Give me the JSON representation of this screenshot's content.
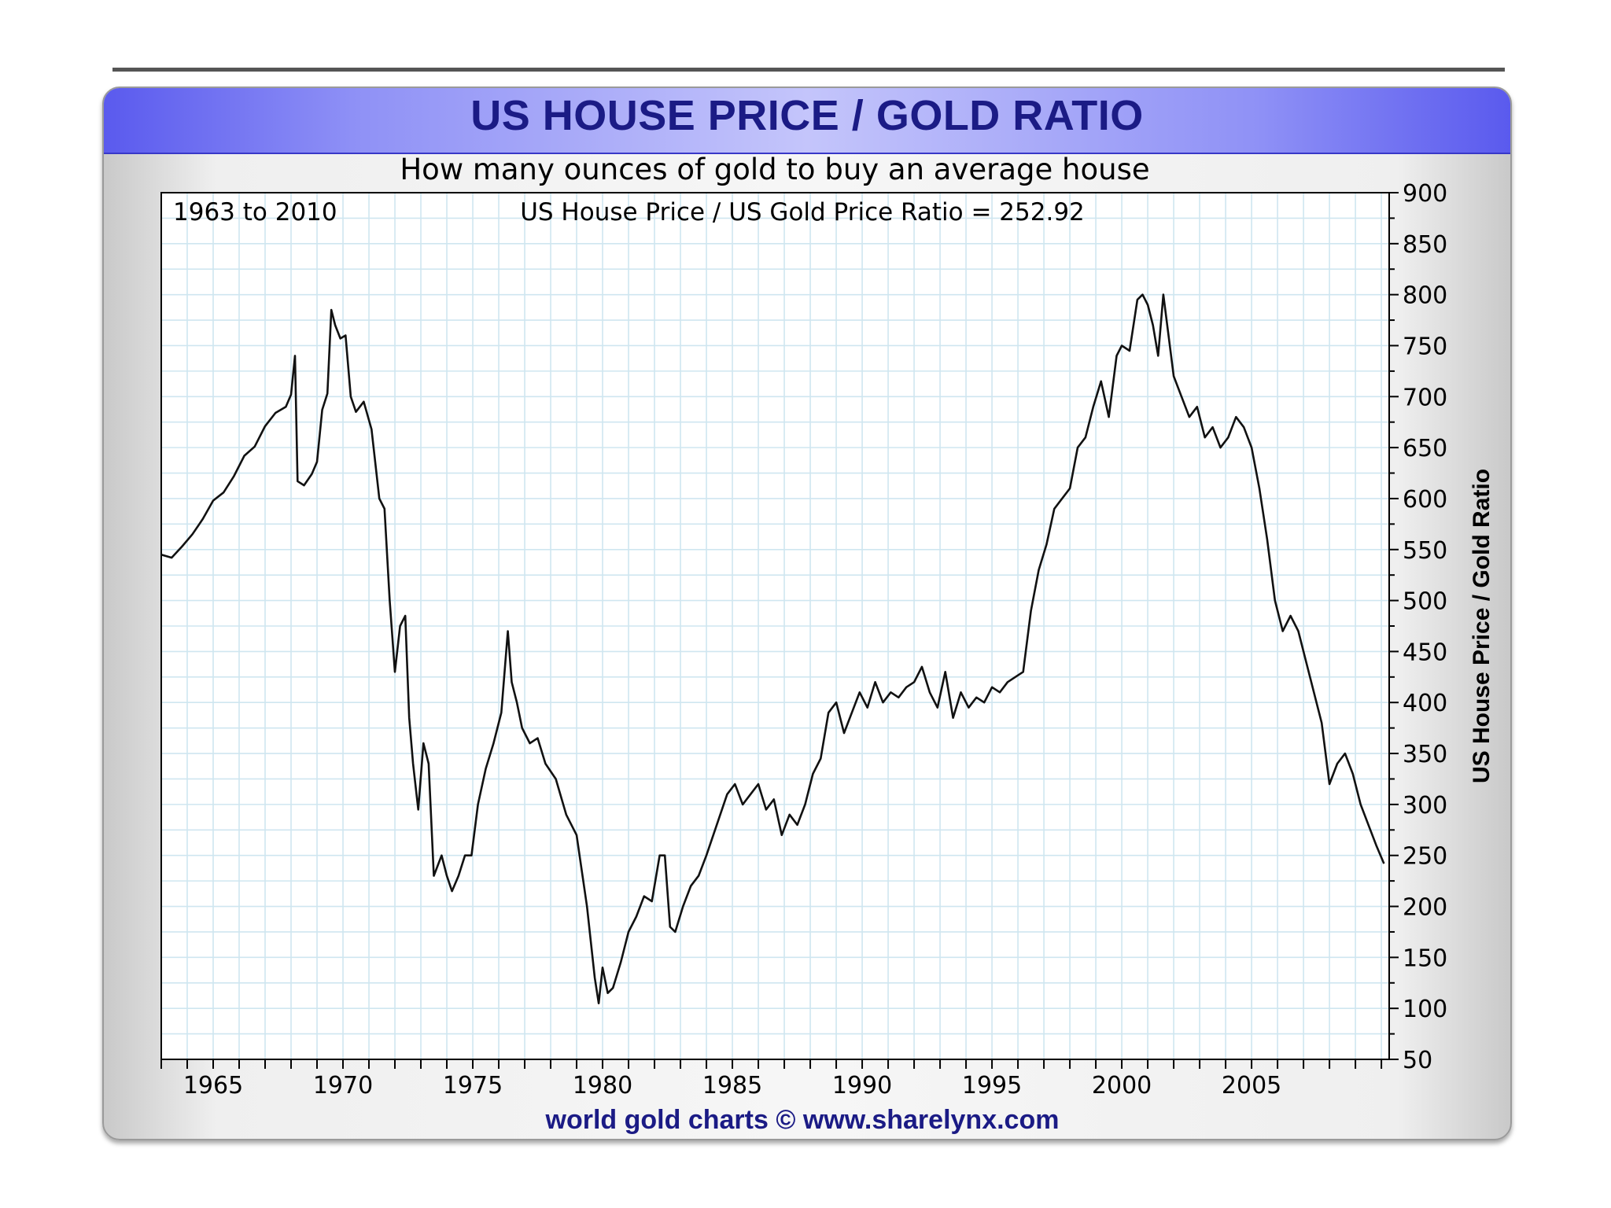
{
  "chart_data": {
    "type": "line",
    "title": "US HOUSE PRICE / GOLD RATIO",
    "subtitle": "How many ounces of gold to buy an average house",
    "annotations": {
      "range_label": "1963 to 2010",
      "current_value_label": "US House Price / US Gold Price Ratio = 252.92"
    },
    "xlabel": "",
    "ylabel": "US House Price / Gold Ratio",
    "footer": "world gold charts © www.sharelynx.com",
    "xlim": [
      1963,
      2010.3
    ],
    "ylim": [
      50,
      900
    ],
    "x_ticks": [
      "1965",
      "1970",
      "1975",
      "1980",
      "1985",
      "1990",
      "1995",
      "2000",
      "2005"
    ],
    "y_ticks": [
      "50",
      "100",
      "150",
      "200",
      "250",
      "300",
      "350",
      "400",
      "450",
      "500",
      "550",
      "600",
      "650",
      "700",
      "750",
      "800",
      "850",
      "900"
    ],
    "grid": true,
    "y_axis_side": "right",
    "series": [
      {
        "x": [
          1963.0,
          1963.4,
          1963.8,
          1964.2,
          1964.6,
          1965.0,
          1965.4,
          1965.8,
          1966.2,
          1966.6,
          1967.0,
          1967.4,
          1967.8,
          1968.0,
          1968.15,
          1968.25,
          1968.5,
          1968.8,
          1969.0,
          1969.2,
          1969.4,
          1969.55,
          1969.7,
          1969.9,
          1970.1,
          1970.3,
          1970.5,
          1970.8,
          1971.1,
          1971.4,
          1971.6,
          1971.8,
          1972.0,
          1972.2,
          1972.4,
          1972.55,
          1972.7,
          1972.9,
          1973.1,
          1973.3,
          1973.5,
          1973.8,
          1974.0,
          1974.2,
          1974.45,
          1974.7,
          1974.95,
          1975.2,
          1975.5,
          1975.8,
          1976.1,
          1976.35,
          1976.5,
          1976.7,
          1976.9,
          1977.2,
          1977.5,
          1977.8,
          1978.2,
          1978.6,
          1979.0,
          1979.4,
          1979.7,
          1979.85,
          1980.0,
          1980.2,
          1980.4,
          1980.7,
          1981.0,
          1981.3,
          1981.6,
          1981.9,
          1982.2,
          1982.4,
          1982.6,
          1982.8,
          1983.1,
          1983.4,
          1983.7,
          1984.0,
          1984.4,
          1984.8,
          1985.1,
          1985.4,
          1985.7,
          1986.0,
          1986.3,
          1986.6,
          1986.9,
          1987.2,
          1987.5,
          1987.8,
          1988.1,
          1988.4,
          1988.7,
          1989.0,
          1989.3,
          1989.6,
          1989.9,
          1990.2,
          1990.5,
          1990.8,
          1991.1,
          1991.4,
          1991.7,
          1992.0,
          1992.3,
          1992.6,
          1992.9,
          1993.2,
          1993.5,
          1993.8,
          1994.1,
          1994.4,
          1994.7,
          1995.0,
          1995.3,
          1995.6,
          1995.9,
          1996.2,
          1996.5,
          1996.8,
          1997.1,
          1997.4,
          1997.7,
          1998.0,
          1998.3,
          1998.6,
          1998.9,
          1999.2,
          1999.5,
          1999.8,
          2000.0,
          2000.3,
          2000.6,
          2000.8,
          2001.0,
          2001.2,
          2001.4,
          2001.6,
          2001.8,
          2002.0,
          2002.3,
          2002.6,
          2002.9,
          2003.2,
          2003.5,
          2003.8,
          2004.1,
          2004.4,
          2004.7,
          2005.0,
          2005.3,
          2005.6,
          2005.9,
          2006.2,
          2006.5,
          2006.8,
          2007.1,
          2007.4,
          2007.7,
          2008.0,
          2008.3,
          2008.6,
          2008.9,
          2009.2,
          2009.5,
          2009.8,
          2010.1
        ],
        "values": [
          545,
          542,
          553,
          565,
          580,
          598,
          606,
          622,
          642,
          651,
          671,
          684,
          690,
          702,
          740,
          617,
          613,
          624,
          636,
          687,
          703,
          785,
          770,
          757,
          760,
          700,
          685,
          695,
          668,
          600,
          590,
          500,
          430,
          475,
          485,
          385,
          340,
          295,
          360,
          340,
          230,
          250,
          230,
          215,
          230,
          250,
          250,
          300,
          335,
          360,
          390,
          470,
          420,
          400,
          375,
          360,
          365,
          340,
          325,
          290,
          270,
          200,
          130,
          105,
          140,
          115,
          120,
          145,
          175,
          190,
          210,
          205,
          250,
          250,
          180,
          175,
          200,
          220,
          230,
          250,
          280,
          310,
          320,
          300,
          310,
          320,
          295,
          305,
          270,
          290,
          280,
          300,
          330,
          345,
          390,
          400,
          370,
          390,
          410,
          395,
          420,
          400,
          410,
          405,
          415,
          420,
          435,
          410,
          395,
          430,
          385,
          410,
          395,
          405,
          400,
          415,
          410,
          420,
          425,
          430,
          490,
          530,
          555,
          590,
          600,
          610,
          650,
          660,
          690,
          715,
          680,
          740,
          750,
          745,
          795,
          800,
          790,
          770,
          740,
          800,
          760,
          720,
          700,
          680,
          690,
          660,
          670,
          650,
          660,
          680,
          670,
          650,
          610,
          560,
          500,
          470,
          485,
          470,
          440,
          410,
          380,
          320,
          340,
          350,
          330,
          300,
          280,
          260,
          242
        ]
      }
    ]
  }
}
